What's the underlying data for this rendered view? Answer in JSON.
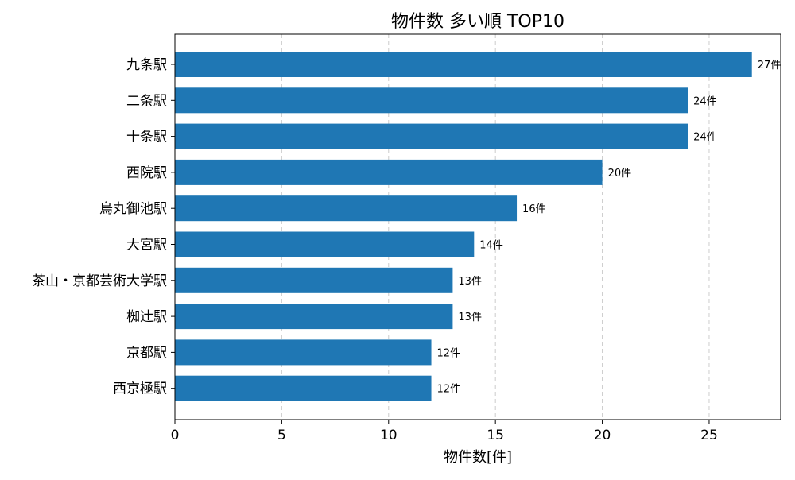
{
  "chart_data": {
    "type": "bar",
    "orientation": "horizontal",
    "title": "物件数 多い順 TOP10",
    "xlabel": "物件数[件]",
    "ylabel": "",
    "categories": [
      "九条駅",
      "二条駅",
      "十条駅",
      "西院駅",
      "烏丸御池駅",
      "大宮駅",
      "茶山・京都芸術大学駅",
      "椥辻駅",
      "京都駅",
      "西京極駅"
    ],
    "values": [
      27,
      24,
      24,
      20,
      16,
      14,
      13,
      13,
      12,
      12
    ],
    "data_labels": [
      "27件",
      "24件",
      "24件",
      "20件",
      "16件",
      "14件",
      "13件",
      "13件",
      "12件",
      "12件"
    ],
    "xlim": [
      0,
      28.35
    ],
    "xticks": [
      0,
      5,
      10,
      15,
      20,
      25
    ],
    "xtick_labels": [
      "0",
      "5",
      "10",
      "15",
      "20",
      "25"
    ],
    "grid": {
      "x": true,
      "y": false,
      "style": "dashed"
    },
    "legend": "none",
    "colors": {
      "bar": "#1f77b4",
      "grid": "#cccccc",
      "axis": "#000000"
    }
  }
}
